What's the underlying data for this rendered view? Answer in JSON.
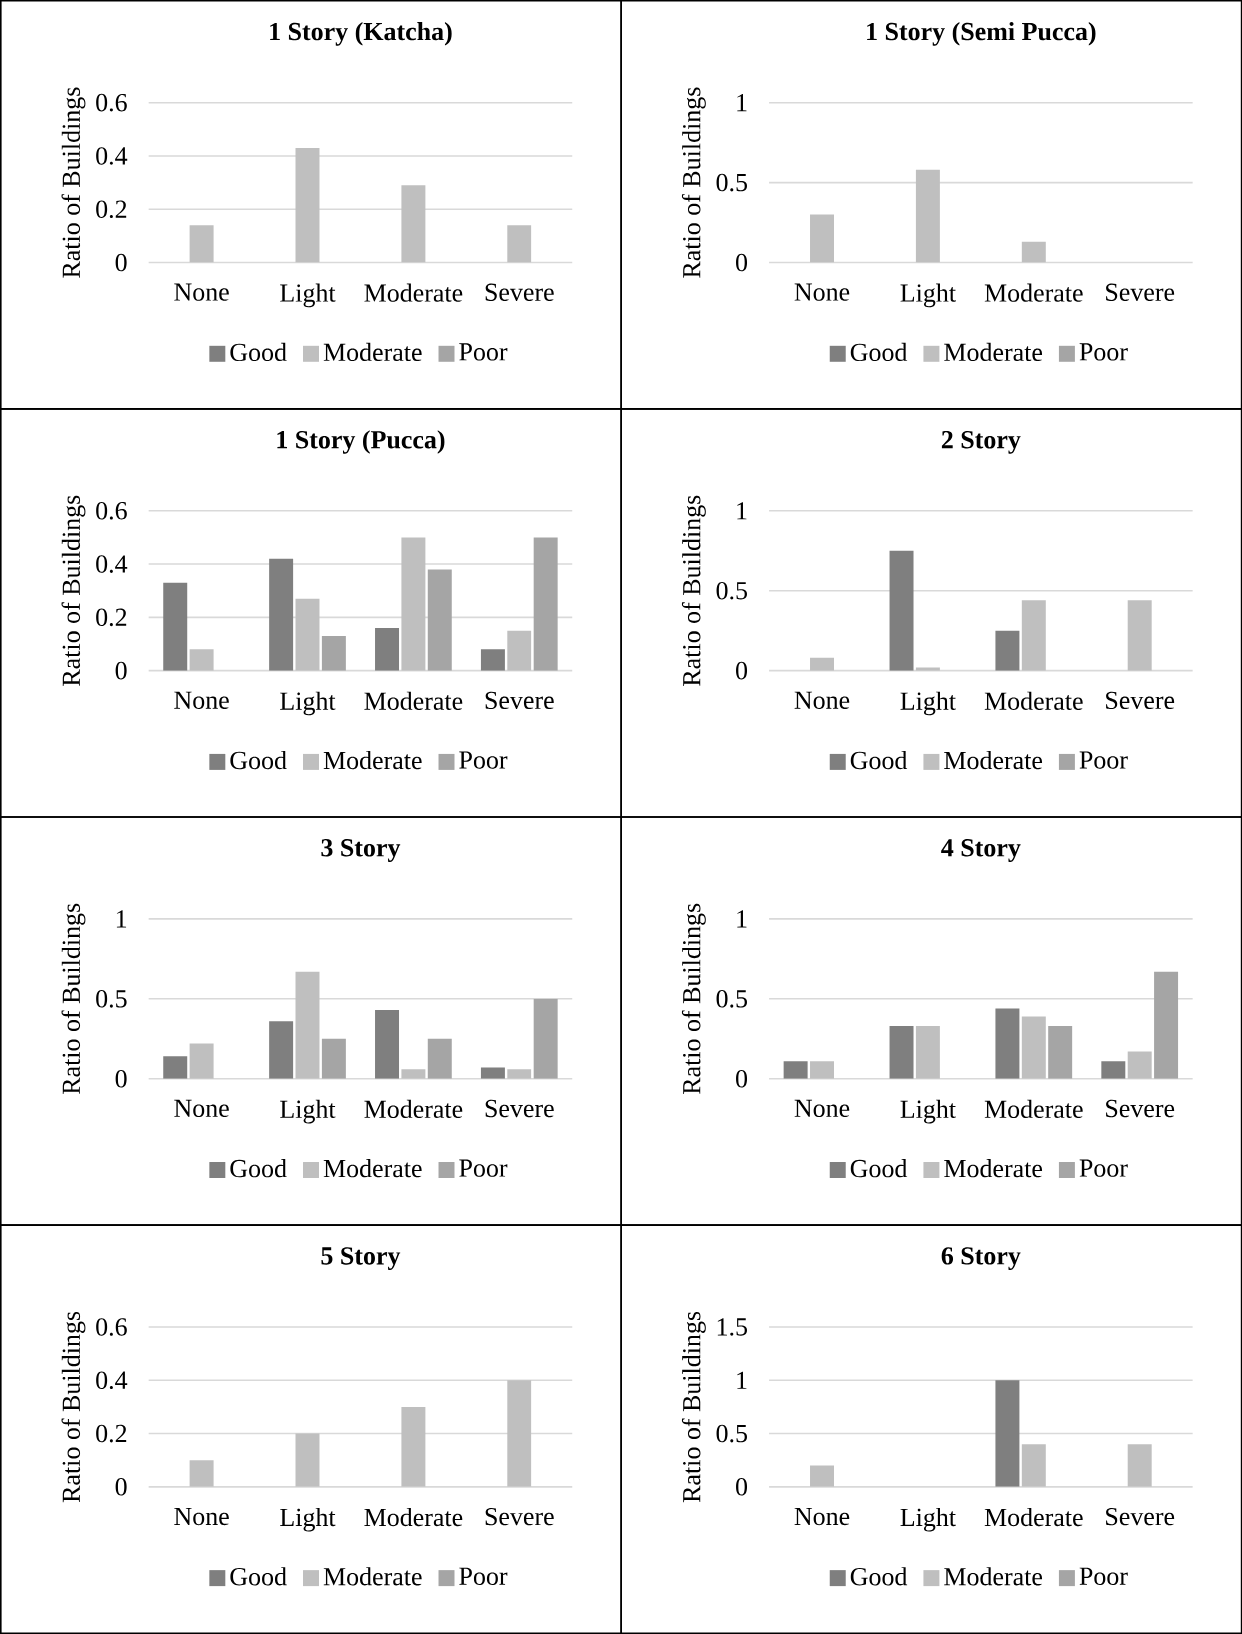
{
  "chart_data": [
    {
      "type": "bar",
      "title": "1 Story (Katcha)",
      "ylabel": "Ratio of Buildings",
      "categories": [
        "None",
        "Light",
        "Moderate",
        "Severe"
      ],
      "ylim": [
        0,
        0.6
      ],
      "yticks": [
        0,
        0.2,
        0.4,
        0.6
      ],
      "grid": "y",
      "legend": "bottom",
      "series": [
        {
          "name": "Good",
          "color": "#7f7f7f",
          "values": [
            0,
            0,
            0,
            0
          ]
        },
        {
          "name": "Moderate",
          "color": "#bfbfbf",
          "values": [
            0.14,
            0.43,
            0.29,
            0.14
          ]
        },
        {
          "name": "Poor",
          "color": "#a5a5a5",
          "values": [
            0,
            0,
            0,
            0
          ]
        }
      ]
    },
    {
      "type": "bar",
      "title": "1 Story (Semi Pucca)",
      "ylabel": "Ratio of Buildings",
      "categories": [
        "None",
        "Light",
        "Moderate",
        "Severe"
      ],
      "ylim": [
        0,
        1
      ],
      "yticks": [
        0,
        0.5,
        1
      ],
      "grid": "y",
      "legend": "bottom",
      "series": [
        {
          "name": "Good",
          "color": "#7f7f7f",
          "values": [
            0,
            0,
            0,
            0
          ]
        },
        {
          "name": "Moderate",
          "color": "#bfbfbf",
          "values": [
            0.3,
            0.58,
            0.13,
            0
          ]
        },
        {
          "name": "Poor",
          "color": "#a5a5a5",
          "values": [
            0,
            0,
            0,
            0
          ]
        }
      ]
    },
    {
      "type": "bar",
      "title": "1 Story (Pucca)",
      "ylabel": "Ratio of Buildings",
      "categories": [
        "None",
        "Light",
        "Moderate",
        "Severe"
      ],
      "ylim": [
        0,
        0.6
      ],
      "yticks": [
        0,
        0.2,
        0.4,
        0.6
      ],
      "grid": "y",
      "legend": "bottom",
      "series": [
        {
          "name": "Good",
          "color": "#7f7f7f",
          "values": [
            0.33,
            0.42,
            0.16,
            0.08
          ]
        },
        {
          "name": "Moderate",
          "color": "#bfbfbf",
          "values": [
            0.08,
            0.27,
            0.5,
            0.15
          ]
        },
        {
          "name": "Poor",
          "color": "#a5a5a5",
          "values": [
            0,
            0.13,
            0.38,
            0.5
          ]
        }
      ]
    },
    {
      "type": "bar",
      "title": "2 Story",
      "ylabel": "Ratio of Buildings",
      "categories": [
        "None",
        "Light",
        "Moderate",
        "Severe"
      ],
      "ylim": [
        0,
        1
      ],
      "yticks": [
        0,
        0.5,
        1
      ],
      "grid": "y",
      "legend": "bottom",
      "series": [
        {
          "name": "Good",
          "color": "#7f7f7f",
          "values": [
            0,
            0.75,
            0.25,
            0
          ]
        },
        {
          "name": "Moderate",
          "color": "#bfbfbf",
          "values": [
            0.08,
            0.02,
            0.44,
            0.44
          ]
        },
        {
          "name": "Poor",
          "color": "#a5a5a5",
          "values": [
            0,
            0,
            0,
            0
          ]
        }
      ]
    },
    {
      "type": "bar",
      "title": "3 Story",
      "ylabel": "Ratio of Buildings",
      "categories": [
        "None",
        "Light",
        "Moderate",
        "Severe"
      ],
      "ylim": [
        0,
        1
      ],
      "yticks": [
        0,
        0.5,
        1
      ],
      "grid": "y",
      "legend": "bottom",
      "series": [
        {
          "name": "Good",
          "color": "#7f7f7f",
          "values": [
            0.14,
            0.36,
            0.43,
            0.07
          ]
        },
        {
          "name": "Moderate",
          "color": "#bfbfbf",
          "values": [
            0.22,
            0.67,
            0.06,
            0.06
          ]
        },
        {
          "name": "Poor",
          "color": "#a5a5a5",
          "values": [
            0,
            0.25,
            0.25,
            0.5
          ]
        }
      ]
    },
    {
      "type": "bar",
      "title": "4 Story",
      "ylabel": "Ratio of Buildings",
      "categories": [
        "None",
        "Light",
        "Moderate",
        "Severe"
      ],
      "ylim": [
        0,
        1
      ],
      "yticks": [
        0,
        0.5,
        1
      ],
      "grid": "y",
      "legend": "bottom",
      "series": [
        {
          "name": "Good",
          "color": "#7f7f7f",
          "values": [
            0.11,
            0.33,
            0.44,
            0.11
          ]
        },
        {
          "name": "Moderate",
          "color": "#bfbfbf",
          "values": [
            0.11,
            0.33,
            0.39,
            0.17
          ]
        },
        {
          "name": "Poor",
          "color": "#a5a5a5",
          "values": [
            0,
            0,
            0.33,
            0.67
          ]
        }
      ]
    },
    {
      "type": "bar",
      "title": "5 Story",
      "ylabel": "Ratio of Buildings",
      "categories": [
        "None",
        "Light",
        "Moderate",
        "Severe"
      ],
      "ylim": [
        0,
        0.6
      ],
      "yticks": [
        0,
        0.2,
        0.4,
        0.6
      ],
      "grid": "y",
      "legend": "bottom",
      "series": [
        {
          "name": "Good",
          "color": "#7f7f7f",
          "values": [
            0,
            0,
            0,
            0
          ]
        },
        {
          "name": "Moderate",
          "color": "#bfbfbf",
          "values": [
            0.1,
            0.2,
            0.3,
            0.4
          ]
        },
        {
          "name": "Poor",
          "color": "#a5a5a5",
          "values": [
            0,
            0,
            0,
            0
          ]
        }
      ]
    },
    {
      "type": "bar",
      "title": "6 Story",
      "ylabel": "Ratio of Buildings",
      "categories": [
        "None",
        "Light",
        "Moderate",
        "Severe"
      ],
      "ylim": [
        0,
        1.5
      ],
      "yticks": [
        0,
        0.5,
        1,
        1.5
      ],
      "grid": "y",
      "legend": "bottom",
      "series": [
        {
          "name": "Good",
          "color": "#7f7f7f",
          "values": [
            0,
            0,
            1,
            0
          ]
        },
        {
          "name": "Moderate",
          "color": "#bfbfbf",
          "values": [
            0.2,
            0,
            0.4,
            0.4
          ]
        },
        {
          "name": "Poor",
          "color": "#a5a5a5",
          "values": [
            0,
            0,
            0,
            0
          ]
        }
      ]
    }
  ]
}
